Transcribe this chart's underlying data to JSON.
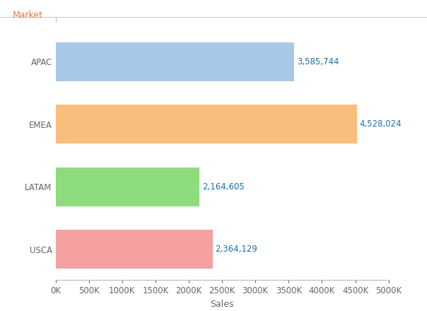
{
  "categories": [
    "USCA",
    "LATAM",
    "EMEA",
    "APAC"
  ],
  "values": [
    2364129,
    2164605,
    4528024,
    3585744
  ],
  "bar_colors": [
    "#f4a0a0",
    "#8fdc7e",
    "#f9be7c",
    "#a8c8e8"
  ],
  "labels": [
    "2,364,129",
    "2,164,605",
    "4,528,024",
    "3,585,744"
  ],
  "title": "Market",
  "xlabel": "Sales",
  "xlim": [
    0,
    5000000
  ],
  "xticks": [
    0,
    500000,
    1000000,
    1500000,
    2000000,
    2500000,
    3000000,
    3500000,
    4000000,
    4500000,
    5000000
  ],
  "xtick_labels": [
    "0K",
    "500K",
    "1000K",
    "1500K",
    "2000K",
    "2500K",
    "3000K",
    "3500K",
    "4000K",
    "4500K",
    "5000K"
  ],
  "label_color": "#1a6faf",
  "title_color": "#e8793a",
  "axis_label_color": "#666666",
  "tick_label_color": "#666666",
  "background_color": "#ffffff",
  "bar_height": 0.62,
  "title_fontsize": 9,
  "label_fontsize": 8.5,
  "tick_fontsize": 8.5,
  "xlabel_fontsize": 9
}
